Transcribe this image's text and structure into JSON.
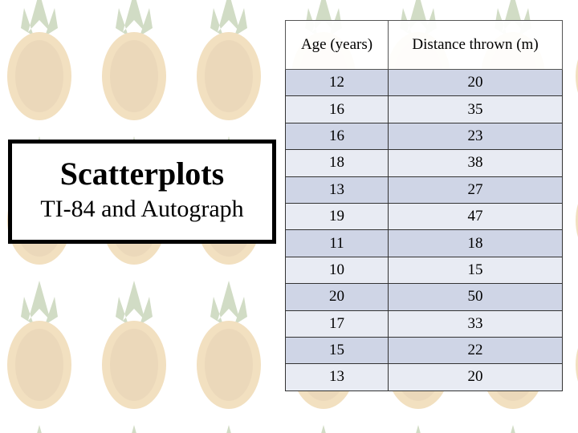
{
  "title_box": {
    "title": "Scatterplots",
    "subtitle": "TI-84 and Autograph"
  },
  "table": {
    "header": [
      "Age (years)",
      "Distance thrown (m)"
    ],
    "rows": [
      [
        "12",
        "20"
      ],
      [
        "16",
        "35"
      ],
      [
        "16",
        "23"
      ],
      [
        "18",
        "38"
      ],
      [
        "13",
        "27"
      ],
      [
        "19",
        "47"
      ],
      [
        "11",
        "18"
      ],
      [
        "10",
        "15"
      ],
      [
        "20",
        "50"
      ],
      [
        "17",
        "33"
      ],
      [
        "15",
        "22"
      ],
      [
        "13",
        "20"
      ]
    ]
  }
}
